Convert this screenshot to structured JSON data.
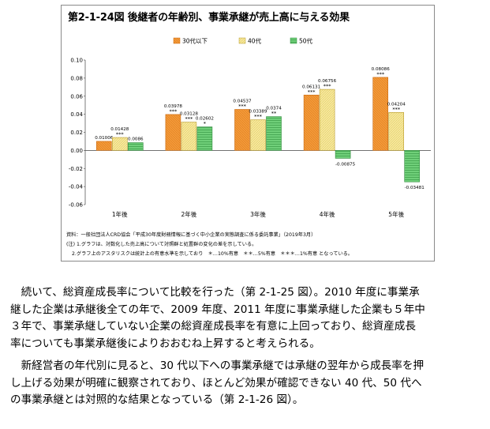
{
  "figure": {
    "title": "第2-1-24図 後継者の年齢別、事業承継が売上高に与える効果",
    "notes": [
      "資料：一般社団法人CRD協会「平成30年度財務情報に基づく中小企業の実態調査に係る委託事業」（2019年3月）",
      "(注) 1.グラフは、対数化した売上高について対照群と処置群の変化の差を示している。",
      "2.グラフ上のアスタリスクは統計上の有意水準を示しており　＊…10%有意　＊＊…5%有意　＊＊＊…1%有意 となっている。"
    ]
  },
  "chart_data": {
    "type": "bar",
    "categories": [
      "1年後",
      "2年後",
      "3年後",
      "4年後",
      "5年後"
    ],
    "ylim": [
      -0.06,
      0.1
    ],
    "yticks": [
      "-0.06",
      "-0.04",
      "-0.02",
      "0.00",
      "0.02",
      "0.04",
      "0.06",
      "0.08",
      "0.10"
    ],
    "series": [
      {
        "name": "30代以下",
        "color": "#f39a3a",
        "values": [
          0.01006,
          0.03978,
          0.04537,
          0.06131,
          0.08086
        ],
        "labels": [
          "0.01006",
          "0.03978",
          "0.04537",
          "0.06131",
          "0.08086"
        ],
        "stars": [
          "",
          "***",
          "***",
          "***",
          "***"
        ]
      },
      {
        "name": "40代",
        "color": "#f2e28a",
        "values": [
          0.01428,
          0.03128,
          0.03389,
          0.06756,
          0.04204
        ],
        "labels": [
          "0.01428",
          "0.03128",
          "0.03389",
          "0.06756",
          "0.04204"
        ],
        "stars": [
          "***",
          "***",
          "***",
          "***",
          "***"
        ]
      },
      {
        "name": "50代",
        "color": "#5fc46a",
        "values": [
          0.0086,
          0.02602,
          0.0374,
          -0.00875,
          -0.03481
        ],
        "labels": [
          "0.0086",
          "0.02602",
          "0.0374",
          "-0.00875",
          "-0.03481"
        ],
        "stars": [
          "",
          "*",
          "**",
          "",
          ""
        ]
      }
    ],
    "legend_position": "top-center",
    "grid": false
  },
  "body_text": {
    "para1": [
      "　続いて、総資産成長率について比較を行った（第 2-1-25 図）。2010 年度に事業承",
      "継した企業は承継後全ての年で、2009 年度、2011 年度に事業承継した企業も５年中",
      "３年で、事業承継していない企業の総資産成長率を有意に上回っており、総資産成長",
      "率についても事業承継後によりおおむね上昇すると考えられる。"
    ],
    "para2": [
      "　新経営者の年代別に見ると、30 代以下への事業承継では承継の翌年から成長率を押",
      "し上げる効果が明確に観察されており、ほとんど効果が確認できない 40 代、50 代へ",
      "の事業承継とは対照的な結果となっている（第 2-1-26 図）。"
    ]
  }
}
